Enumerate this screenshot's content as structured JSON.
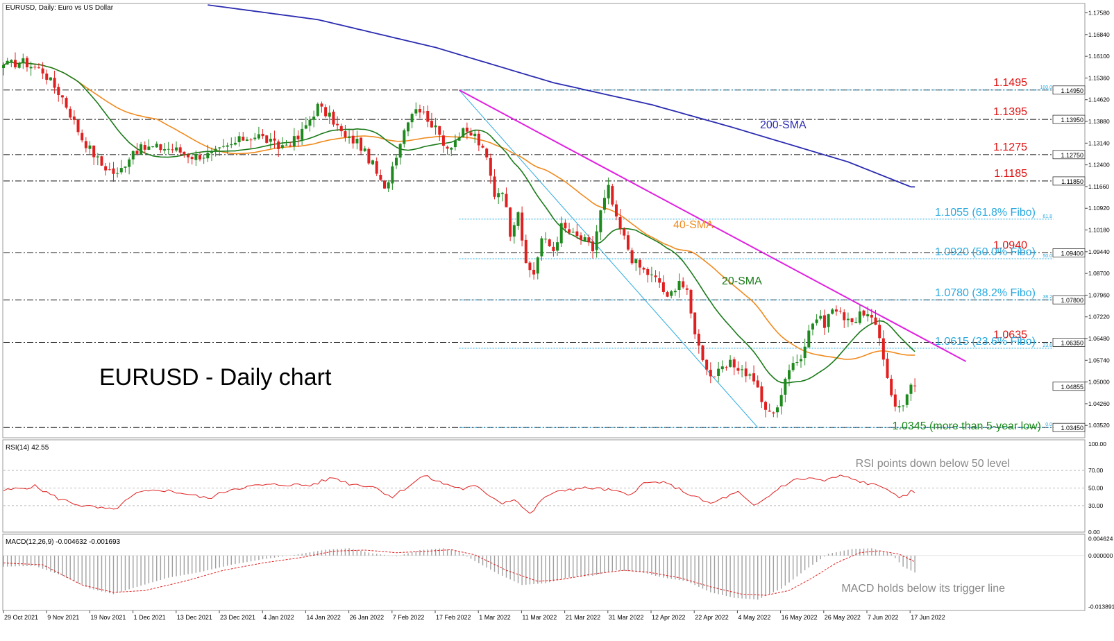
{
  "header": {
    "symbol_label": "EURUSD, Daily:  Euro vs US Dollar",
    "chart_title": "EURUSD - Daily chart"
  },
  "colors": {
    "bull": "#1e8a1e",
    "bear": "#e02020",
    "sma20": "#1a7a1a",
    "sma40": "#f08a1e",
    "sma200": "#2a2ab0",
    "trendline": "#e020e0",
    "fibo": "#29a9e0",
    "level_label": "#e01010",
    "rsi": "#e02020",
    "macd_signal": "#e02020",
    "macd_hist": "#a0a0a0",
    "low_label": "#1a8a1a"
  },
  "chart_data": [
    {
      "type": "candlestick",
      "name": "price",
      "ylim": [
        1.031,
        1.179
      ],
      "y_ticks": [
        "1.17580",
        "1.16840",
        "1.16100",
        "1.15360",
        "1.14620",
        "1.13880",
        "1.13140",
        "1.12400",
        "1.11660",
        "1.10920",
        "1.10180",
        "1.09440",
        "1.08700",
        "1.07960",
        "1.07220",
        "1.06480",
        "1.05740",
        "1.05000",
        "1.04260",
        "1.03520"
      ],
      "x_labels": [
        "29 Oct 2021",
        "9 Nov 2021",
        "19 Nov 2021",
        "1 Dec 2021",
        "13 Dec 2021",
        "23 Dec 2021",
        "4 Jan 2022",
        "14 Jan 2022",
        "26 Jan 2022",
        "7 Feb 2022",
        "17 Feb 2022",
        "1 Mar 2022",
        "11 Mar 2022",
        "21 Mar 2022",
        "31 Mar 2022",
        "12 Apr 2022",
        "22 Apr 2022",
        "4 May 2022",
        "16 May 2022",
        "26 May 2022",
        "7 Jun 2022",
        "17 Jun 2022"
      ],
      "close_anchors": [
        [
          0,
          1.158
        ],
        [
          5,
          1.159
        ],
        [
          10,
          1.156
        ],
        [
          15,
          1.147
        ],
        [
          20,
          1.133
        ],
        [
          25,
          1.124
        ],
        [
          29,
          1.1205
        ],
        [
          33,
          1.129
        ],
        [
          38,
          1.13
        ],
        [
          43,
          1.1295
        ],
        [
          48,
          1.127
        ],
        [
          53,
          1.1275
        ],
        [
          57,
          1.13
        ],
        [
          61,
          1.133
        ],
        [
          65,
          1.134
        ],
        [
          70,
          1.13
        ],
        [
          75,
          1.133
        ],
        [
          80,
          1.144
        ],
        [
          84,
          1.139
        ],
        [
          87,
          1.133
        ],
        [
          90,
          1.132
        ],
        [
          94,
          1.124
        ],
        [
          97,
          1.115
        ],
        [
          100,
          1.128
        ],
        [
          103,
          1.14
        ],
        [
          105,
          1.144
        ],
        [
          108,
          1.14
        ],
        [
          110,
          1.136
        ],
        [
          113,
          1.13
        ],
        [
          117,
          1.135
        ],
        [
          120,
          1.134
        ],
        [
          123,
          1.126
        ],
        [
          125,
          1.114
        ],
        [
          127,
          1.116
        ],
        [
          129,
          1.101
        ],
        [
          131,
          1.109
        ],
        [
          133,
          1.089
        ],
        [
          135,
          1.087
        ],
        [
          137,
          1.099
        ],
        [
          140,
          1.095
        ],
        [
          142,
          1.103
        ],
        [
          145,
          1.1
        ],
        [
          148,
          1.098
        ],
        [
          150,
          1.095
        ],
        [
          152,
          1.108
        ],
        [
          154,
          1.116
        ],
        [
          156,
          1.105
        ],
        [
          158,
          1.099
        ],
        [
          160,
          1.092
        ],
        [
          162,
          1.089
        ],
        [
          164,
          1.087
        ],
        [
          167,
          1.084
        ],
        [
          169,
          1.078
        ],
        [
          172,
          1.085
        ],
        [
          174,
          1.08
        ],
        [
          175,
          1.073
        ],
        [
          177,
          1.062
        ],
        [
          180,
          1.052
        ],
        [
          182,
          1.053
        ],
        [
          185,
          1.056
        ],
        [
          187,
          1.055
        ],
        [
          189,
          1.053
        ],
        [
          191,
          1.051
        ],
        [
          193,
          1.043
        ],
        [
          195,
          1.039
        ],
        [
          197,
          1.042
        ],
        [
          199,
          1.05
        ],
        [
          201,
          1.058
        ],
        [
          203,
          1.058
        ],
        [
          205,
          1.068
        ],
        [
          207,
          1.072
        ],
        [
          209,
          1.07
        ],
        [
          211,
          1.075
        ],
        [
          213,
          1.073
        ],
        [
          215,
          1.072
        ],
        [
          217,
          1.071
        ],
        [
          219,
          1.074
        ],
        [
          221,
          1.071
        ],
        [
          223,
          1.065
        ],
        [
          225,
          1.052
        ],
        [
          227,
          1.041
        ],
        [
          229,
          1.043
        ],
        [
          231,
          1.048
        ],
        [
          232,
          1.047
        ]
      ],
      "levels": [
        {
          "value": 1.1495,
          "label": "1.1495",
          "tag": "1.14950",
          "style": "dashdot"
        },
        {
          "value": 1.1395,
          "label": "1.1395",
          "tag": "1.13950",
          "style": "dashdot"
        },
        {
          "value": 1.1275,
          "label": "1.1275",
          "tag": "1.12750",
          "style": "dashdot"
        },
        {
          "value": 1.1185,
          "label": "1.1185",
          "tag": "1.11850",
          "style": "dashdot"
        },
        {
          "value": 1.094,
          "label": "1.0940",
          "tag": "1.09400",
          "style": "dashdot"
        },
        {
          "value": 1.078,
          "label": "",
          "tag": "1.07800",
          "style": "dashdot"
        },
        {
          "value": 1.0635,
          "label": "1.0635",
          "tag": "1.06350",
          "style": "dashdot"
        },
        {
          "value": 1.0345,
          "label": "",
          "tag": "1.03450",
          "style": "dashdot"
        }
      ],
      "fibo_levels": [
        {
          "value": 1.1495,
          "ratio": "100.0",
          "label": ""
        },
        {
          "value": 1.1055,
          "ratio": "61.8",
          "label": "1.1055 (61.8% Fibo)"
        },
        {
          "value": 1.092,
          "ratio": "50.0",
          "label": "1.0920 (50.0% Fibo)"
        },
        {
          "value": 1.078,
          "ratio": "38.2",
          "label": "1.0780 (38.2% Fibo)"
        },
        {
          "value": 1.0615,
          "ratio": "23.6",
          "label": "1.0615 (23.6% Fibo)"
        },
        {
          "value": 1.0345,
          "ratio": "0.0",
          "label": ""
        }
      ],
      "current_price_tag": "1.04855",
      "current_price": 1.04855,
      "low_label": "1.0345 (more than 5-year low)",
      "sma_labels": {
        "sma200": "200-SMA",
        "sma40": "40-SMA",
        "sma20": "20-SMA"
      },
      "sma200_anchors": [
        [
          52,
          1.1785
        ],
        [
          80,
          1.1735
        ],
        [
          110,
          1.164
        ],
        [
          140,
          1.152
        ],
        [
          165,
          1.1445
        ],
        [
          185,
          1.137
        ],
        [
          200,
          1.131
        ],
        [
          215,
          1.125
        ],
        [
          231,
          1.1165
        ]
      ],
      "trendline": {
        "from": [
          116,
          1.1495
        ],
        "to": [
          245,
          1.057
        ]
      },
      "fibo_diagonal": {
        "from": [
          116,
          1.1495
        ],
        "to": [
          192,
          1.0345
        ]
      }
    },
    {
      "type": "line",
      "name": "RSI(14)",
      "label": "RSI(14) 42.55",
      "ylim": [
        0,
        100
      ],
      "y_ticks": [
        "100.00",
        "70.00",
        "50.00",
        "30.00",
        "0.00"
      ],
      "annotation": "RSI points down below 50 level",
      "anchors": [
        [
          0,
          47
        ],
        [
          8,
          52
        ],
        [
          14,
          38
        ],
        [
          20,
          30
        ],
        [
          28,
          25
        ],
        [
          34,
          44
        ],
        [
          40,
          48
        ],
        [
          46,
          44
        ],
        [
          52,
          38
        ],
        [
          58,
          49
        ],
        [
          65,
          53
        ],
        [
          72,
          54
        ],
        [
          78,
          53
        ],
        [
          84,
          62
        ],
        [
          88,
          55
        ],
        [
          94,
          52
        ],
        [
          99,
          40
        ],
        [
          103,
          52
        ],
        [
          107,
          64
        ],
        [
          112,
          55
        ],
        [
          117,
          49
        ],
        [
          120,
          52
        ],
        [
          123,
          44
        ],
        [
          127,
          33
        ],
        [
          130,
          38
        ],
        [
          134,
          20
        ],
        [
          138,
          41
        ],
        [
          144,
          49
        ],
        [
          150,
          50
        ],
        [
          155,
          47
        ],
        [
          159,
          42
        ],
        [
          163,
          55
        ],
        [
          167,
          57
        ],
        [
          171,
          51
        ],
        [
          175,
          42
        ],
        [
          180,
          32
        ],
        [
          184,
          40
        ],
        [
          187,
          45
        ],
        [
          191,
          29
        ],
        [
          194,
          38
        ],
        [
          198,
          52
        ],
        [
          202,
          60
        ],
        [
          206,
          61
        ],
        [
          209,
          58
        ],
        [
          213,
          64
        ],
        [
          216,
          60
        ],
        [
          221,
          54
        ],
        [
          225,
          50
        ],
        [
          228,
          37
        ],
        [
          231,
          46
        ],
        [
          232,
          44
        ]
      ]
    },
    {
      "type": "bar+line",
      "name": "MACD(12,26,9)",
      "label": "MACD(12,26,9) -0.004632 -0.001693",
      "ylim": [
        -0.0138,
        0.0047
      ],
      "y_ticks": [
        "0.004624",
        "0.000000",
        "-0.013891"
      ],
      "annotation": "MACD holds below its trigger line",
      "hist_anchors": [
        [
          0,
          -0.003
        ],
        [
          8,
          -0.0028
        ],
        [
          15,
          -0.0055
        ],
        [
          22,
          -0.009
        ],
        [
          28,
          -0.0105
        ],
        [
          34,
          -0.0085
        ],
        [
          42,
          -0.006
        ],
        [
          50,
          -0.0045
        ],
        [
          58,
          -0.0025
        ],
        [
          66,
          -0.001
        ],
        [
          74,
          0.0002
        ],
        [
          82,
          0.0016
        ],
        [
          88,
          0.002
        ],
        [
          94,
          0.0006
        ],
        [
          100,
          -0.0002
        ],
        [
          106,
          0.0015
        ],
        [
          112,
          0.002
        ],
        [
          116,
          0.001
        ],
        [
          120,
          -0.0015
        ],
        [
          126,
          -0.005
        ],
        [
          132,
          -0.008
        ],
        [
          138,
          -0.0075
        ],
        [
          144,
          -0.006
        ],
        [
          150,
          -0.0055
        ],
        [
          156,
          -0.004
        ],
        [
          162,
          -0.0045
        ],
        [
          168,
          -0.006
        ],
        [
          174,
          -0.007
        ],
        [
          180,
          -0.01
        ],
        [
          186,
          -0.0115
        ],
        [
          192,
          -0.012
        ],
        [
          198,
          -0.009
        ],
        [
          204,
          -0.004
        ],
        [
          210,
          0.0005
        ],
        [
          216,
          0.0018
        ],
        [
          221,
          0.002
        ],
        [
          226,
          0.0005
        ],
        [
          229,
          -0.003
        ],
        [
          232,
          -0.0046
        ]
      ],
      "signal_anchors": [
        [
          0,
          -0.002
        ],
        [
          10,
          -0.0025
        ],
        [
          20,
          -0.008
        ],
        [
          28,
          -0.01
        ],
        [
          36,
          -0.0095
        ],
        [
          46,
          -0.007
        ],
        [
          56,
          -0.004
        ],
        [
          66,
          -0.002
        ],
        [
          76,
          -0.0005
        ],
        [
          84,
          0.0012
        ],
        [
          92,
          0.0015
        ],
        [
          100,
          0.0008
        ],
        [
          108,
          0.0012
        ],
        [
          114,
          0.0016
        ],
        [
          120,
          0.0002
        ],
        [
          128,
          -0.004
        ],
        [
          136,
          -0.007
        ],
        [
          142,
          -0.0065
        ],
        [
          150,
          -0.005
        ],
        [
          158,
          -0.004
        ],
        [
          164,
          -0.0045
        ],
        [
          172,
          -0.006
        ],
        [
          180,
          -0.0085
        ],
        [
          188,
          -0.0105
        ],
        [
          194,
          -0.0108
        ],
        [
          200,
          -0.0095
        ],
        [
          206,
          -0.006
        ],
        [
          212,
          -0.002
        ],
        [
          218,
          0.0008
        ],
        [
          223,
          0.0013
        ],
        [
          228,
          0.0004
        ],
        [
          232,
          -0.0017
        ]
      ]
    }
  ]
}
